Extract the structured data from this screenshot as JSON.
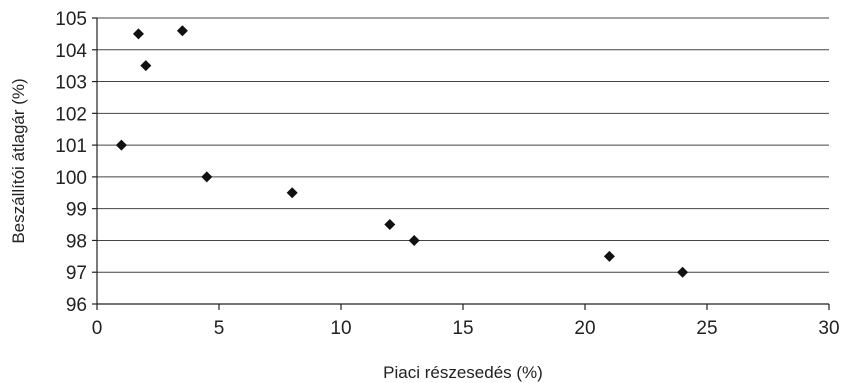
{
  "chart_data": {
    "type": "scatter",
    "xlabel": "Piaci részesedés (%)",
    "ylabel": "Beszállítói átlagár (%)",
    "xlim": [
      0,
      30
    ],
    "ylim": [
      96,
      105
    ],
    "x_ticks": [
      "0",
      "5",
      "10",
      "15",
      "20",
      "25",
      "30"
    ],
    "y_ticks": [
      "96",
      "97",
      "98",
      "99",
      "100",
      "101",
      "102",
      "103",
      "104",
      "105"
    ],
    "grid": "horizontal",
    "marker": "diamond",
    "marker_color": "#111111",
    "series": [
      {
        "points": [
          {
            "x": 1.0,
            "y": 101.0
          },
          {
            "x": 1.7,
            "y": 104.5
          },
          {
            "x": 2.0,
            "y": 103.5
          },
          {
            "x": 3.5,
            "y": 104.6
          },
          {
            "x": 4.5,
            "y": 100.0
          },
          {
            "x": 8.0,
            "y": 99.5
          },
          {
            "x": 12.0,
            "y": 98.5
          },
          {
            "x": 13.0,
            "y": 98.0
          },
          {
            "x": 21.0,
            "y": 97.5
          },
          {
            "x": 24.0,
            "y": 97.0
          }
        ]
      }
    ]
  }
}
